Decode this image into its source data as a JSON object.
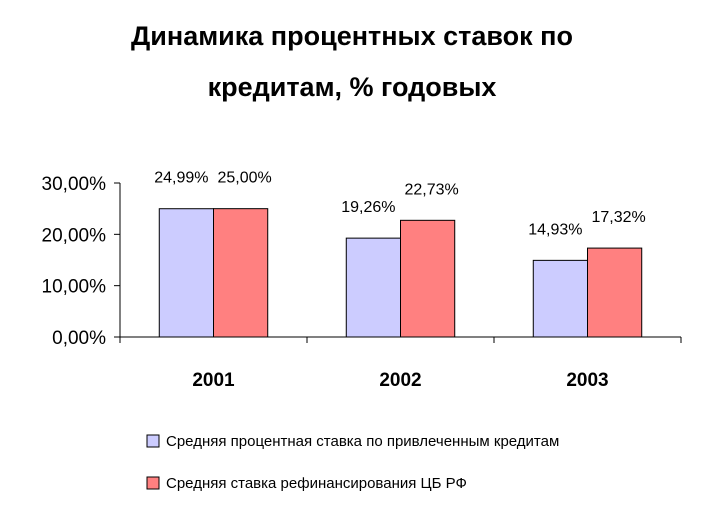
{
  "chart_data": {
    "type": "bar",
    "title_lines": [
      "Динамика процентных ставок по",
      "кредитам, % годовых"
    ],
    "categories": [
      "2001",
      "2002",
      "2003"
    ],
    "ylim": [
      0,
      30
    ],
    "yticks": [
      0,
      10,
      20,
      30
    ],
    "ytick_labels": [
      "0,00%",
      "10,00%",
      "20,00%",
      "30,00%"
    ],
    "grid": false,
    "legend_position": "bottom",
    "series": [
      {
        "name": "Средняя процентная ставка по привлеченным кредитам",
        "values": [
          24.99,
          19.26,
          14.93
        ],
        "labels": [
          "24,99%",
          "19,26%",
          "14,93%"
        ],
        "color": "#ccccff"
      },
      {
        "name": "Средняя ставка рефинансирования ЦБ РФ",
        "values": [
          25.0,
          22.73,
          17.32
        ],
        "labels": [
          "25,00%",
          "22,73%",
          "17,32%"
        ],
        "color": "#ff8080"
      }
    ]
  }
}
